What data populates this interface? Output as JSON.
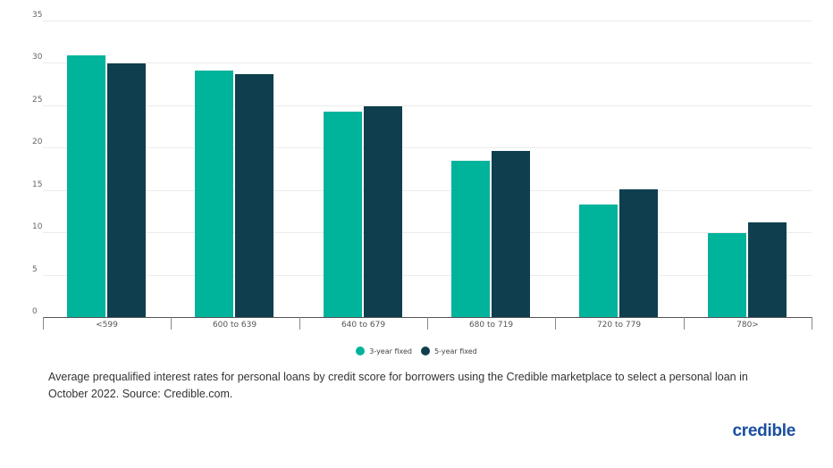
{
  "chart_data": {
    "type": "bar",
    "title": "",
    "xlabel": "",
    "ylabel": "",
    "ylim": [
      0,
      35
    ],
    "yticks": [
      0,
      5,
      10,
      15,
      20,
      25,
      30,
      35
    ],
    "grid": true,
    "legend_position": "bottom",
    "categories": [
      "<599",
      "600 to 639",
      "640 to 679",
      "680 to 719",
      "720 to 779",
      "780>"
    ],
    "series": [
      {
        "name": "3-year fixed",
        "color": "#00b39b",
        "values": [
          30.9,
          29.1,
          24.2,
          18.5,
          13.3,
          9.9
        ]
      },
      {
        "name": "5-year fixed",
        "color": "#0f3f4f",
        "values": [
          29.9,
          28.7,
          24.9,
          19.6,
          15.1,
          11.2
        ]
      }
    ]
  },
  "legend": {
    "items": [
      {
        "label": "3-year fixed",
        "color": "#00b39b"
      },
      {
        "label": "5-year fixed",
        "color": "#0f3f4f"
      }
    ]
  },
  "caption": "Average prequalified interest rates for personal loans by credit score for borrowers using the Credible marketplace to select a personal loan in October 2022. Source: Credible.com.",
  "brand": {
    "logo_text": "credible",
    "color": "#1a4fa0"
  }
}
